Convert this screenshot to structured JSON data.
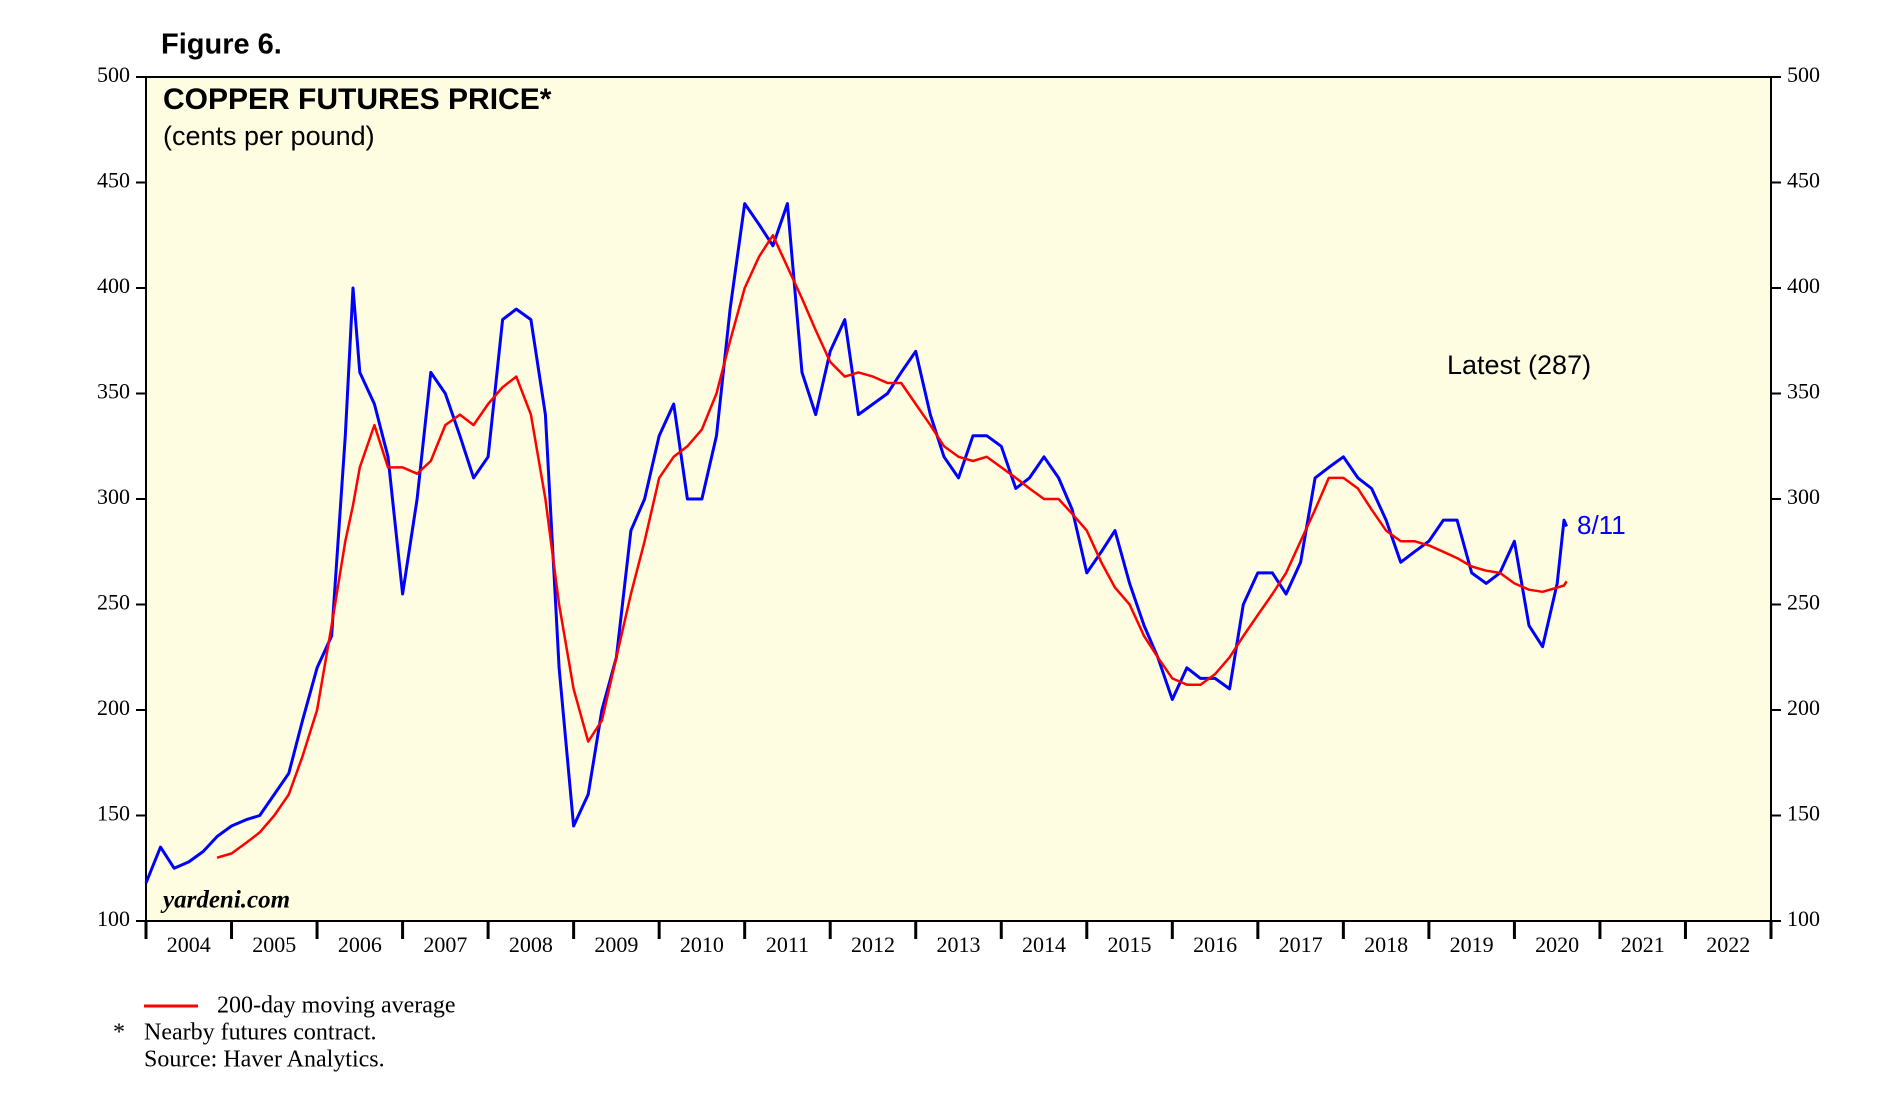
{
  "chart_data": {
    "type": "line",
    "figure_label": "Figure 6.",
    "title": "COPPER FUTURES PRICE*",
    "subtitle": "(cents per pound)",
    "watermark": "yardeni.com",
    "annotation": "Latest (287)",
    "latest_date_label": "8/11",
    "footnotes": [
      "*",
      "Nearby futures contract.",
      "Source: Haver Analytics."
    ],
    "background": "#fffde1",
    "x": [
      2004.0,
      2004.17,
      2004.33,
      2004.5,
      2004.67,
      2004.83,
      2005.0,
      2005.17,
      2005.33,
      2005.5,
      2005.67,
      2005.83,
      2006.0,
      2006.17,
      2006.33,
      2006.42,
      2006.5,
      2006.67,
      2006.83,
      2007.0,
      2007.17,
      2007.33,
      2007.5,
      2007.67,
      2007.83,
      2008.0,
      2008.17,
      2008.33,
      2008.5,
      2008.67,
      2008.83,
      2009.0,
      2009.17,
      2009.33,
      2009.5,
      2009.67,
      2009.83,
      2010.0,
      2010.17,
      2010.33,
      2010.5,
      2010.67,
      2010.83,
      2011.0,
      2011.17,
      2011.33,
      2011.5,
      2011.67,
      2011.83,
      2012.0,
      2012.17,
      2012.33,
      2012.5,
      2012.67,
      2012.83,
      2013.0,
      2013.17,
      2013.33,
      2013.5,
      2013.67,
      2013.83,
      2014.0,
      2014.17,
      2014.33,
      2014.5,
      2014.67,
      2014.83,
      2015.0,
      2015.17,
      2015.33,
      2015.5,
      2015.67,
      2015.83,
      2016.0,
      2016.17,
      2016.33,
      2016.5,
      2016.67,
      2016.83,
      2017.0,
      2017.17,
      2017.33,
      2017.5,
      2017.67,
      2017.83,
      2018.0,
      2018.17,
      2018.33,
      2018.5,
      2018.67,
      2018.83,
      2019.0,
      2019.17,
      2019.33,
      2019.5,
      2019.67,
      2019.83,
      2020.0,
      2020.17,
      2020.33,
      2020.5,
      2020.58,
      2020.61
    ],
    "series": [
      {
        "color": "#0000ff",
        "values": [
          118,
          135,
          125,
          128,
          133,
          140,
          145,
          148,
          150,
          160,
          170,
          195,
          220,
          235,
          330,
          400,
          360,
          345,
          320,
          255,
          300,
          360,
          350,
          330,
          310,
          320,
          385,
          390,
          385,
          340,
          220,
          145,
          160,
          200,
          225,
          285,
          300,
          330,
          345,
          300,
          300,
          330,
          390,
          440,
          430,
          420,
          440,
          360,
          340,
          370,
          385,
          340,
          345,
          350,
          360,
          370,
          340,
          320,
          310,
          330,
          330,
          325,
          305,
          310,
          320,
          310,
          295,
          265,
          275,
          285,
          260,
          240,
          225,
          205,
          220,
          215,
          215,
          210,
          250,
          265,
          265,
          255,
          270,
          310,
          315,
          320,
          310,
          305,
          290,
          270,
          275,
          280,
          290,
          290,
          265,
          260,
          265,
          280,
          240,
          230,
          260,
          290,
          287
        ]
      },
      {
        "name": "200-day moving average",
        "color": "#ff0000",
        "values": [
          null,
          null,
          null,
          null,
          null,
          130,
          132,
          137,
          142,
          150,
          160,
          178,
          200,
          240,
          280,
          297,
          315,
          335,
          315,
          315,
          312,
          318,
          335,
          340,
          335,
          345,
          353,
          358,
          340,
          300,
          250,
          210,
          185,
          195,
          225,
          255,
          280,
          310,
          320,
          325,
          333,
          350,
          375,
          400,
          415,
          425,
          410,
          395,
          380,
          365,
          358,
          360,
          358,
          355,
          355,
          345,
          335,
          325,
          320,
          318,
          320,
          315,
          310,
          305,
          300,
          300,
          293,
          285,
          270,
          258,
          250,
          235,
          225,
          215,
          212,
          212,
          217,
          225,
          235,
          245,
          255,
          265,
          280,
          295,
          310,
          310,
          305,
          295,
          285,
          280,
          280,
          278,
          275,
          272,
          268,
          266,
          265,
          260,
          257,
          256,
          258,
          259,
          261
        ]
      }
    ],
    "xlim": [
      2004,
      2023
    ],
    "xticks": [
      {
        "value": 2004.5,
        "label": "2004"
      },
      {
        "value": 2005.5,
        "label": "2005"
      },
      {
        "value": 2006.5,
        "label": "2006"
      },
      {
        "value": 2007.5,
        "label": "2007"
      },
      {
        "value": 2008.5,
        "label": "2008"
      },
      {
        "value": 2009.5,
        "label": "2009"
      },
      {
        "value": 2010.5,
        "label": "2010"
      },
      {
        "value": 2011.5,
        "label": "2011"
      },
      {
        "value": 2012.5,
        "label": "2012"
      },
      {
        "value": 2013.5,
        "label": "2013"
      },
      {
        "value": 2014.5,
        "label": "2014"
      },
      {
        "value": 2015.5,
        "label": "2015"
      },
      {
        "value": 2016.5,
        "label": "2016"
      },
      {
        "value": 2017.5,
        "label": "2017"
      },
      {
        "value": 2018.5,
        "label": "2018"
      },
      {
        "value": 2019.5,
        "label": "2019"
      },
      {
        "value": 2020.5,
        "label": "2020"
      },
      {
        "value": 2021.5,
        "label": "2021"
      },
      {
        "value": 2022.5,
        "label": "2022"
      }
    ],
    "ylim": [
      100,
      500
    ],
    "yticks": [
      100,
      150,
      200,
      250,
      300,
      350,
      400,
      450,
      500
    ]
  }
}
